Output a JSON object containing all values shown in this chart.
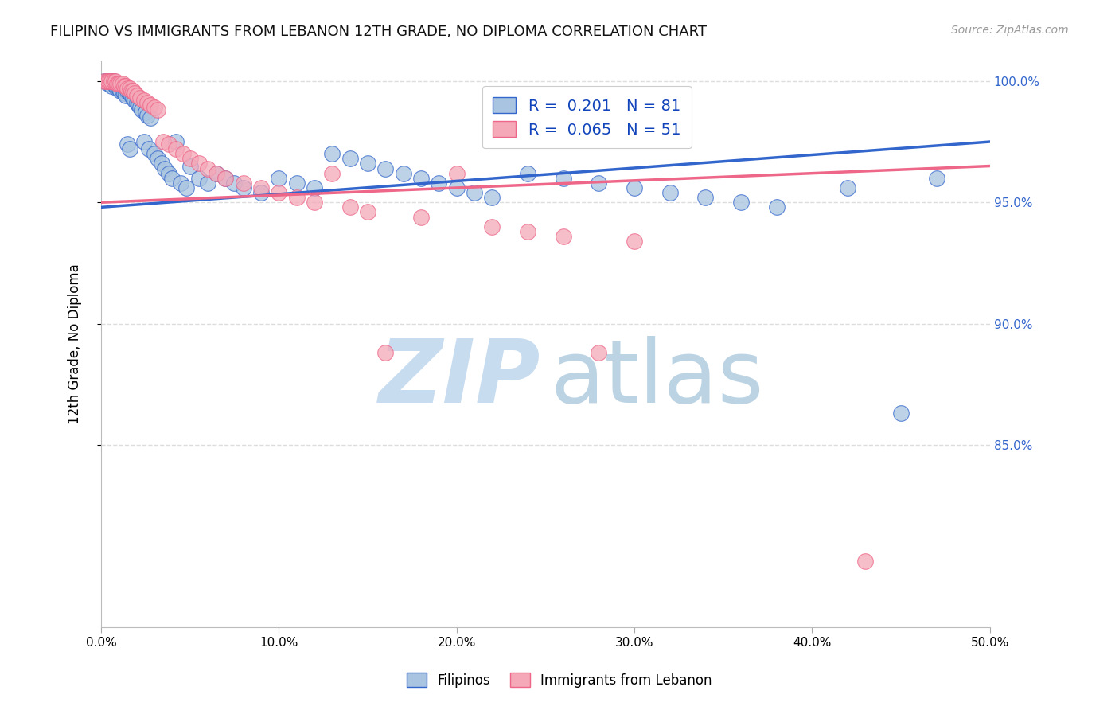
{
  "title": "FILIPINO VS IMMIGRANTS FROM LEBANON 12TH GRADE, NO DIPLOMA CORRELATION CHART",
  "source": "Source: ZipAtlas.com",
  "ylabel_label": "12th Grade, No Diploma",
  "xlim": [
    0.0,
    0.5
  ],
  "ylim": [
    0.775,
    1.008
  ],
  "yticks": [
    1.0,
    0.95,
    0.9,
    0.85
  ],
  "xticks": [
    0.0,
    0.1,
    0.2,
    0.3,
    0.4,
    0.5
  ],
  "blue_R": "0.201",
  "blue_N": "81",
  "pink_R": "0.065",
  "pink_N": "51",
  "blue_color": "#A8C4E0",
  "pink_color": "#F4A8B8",
  "blue_line_color": "#3366CC",
  "pink_line_color": "#EE6688",
  "legend_text_color": "#1144BB",
  "title_color": "#111111",
  "grid_color": "#DDDDDD",
  "blue_x": [
    0.002,
    0.003,
    0.004,
    0.004,
    0.005,
    0.005,
    0.006,
    0.006,
    0.007,
    0.007,
    0.008,
    0.008,
    0.009,
    0.009,
    0.01,
    0.01,
    0.011,
    0.011,
    0.012,
    0.012,
    0.013,
    0.013,
    0.014,
    0.014,
    0.015,
    0.015,
    0.016,
    0.016,
    0.017,
    0.018,
    0.019,
    0.02,
    0.021,
    0.022,
    0.023,
    0.024,
    0.025,
    0.026,
    0.027,
    0.028,
    0.03,
    0.032,
    0.034,
    0.036,
    0.038,
    0.04,
    0.042,
    0.045,
    0.048,
    0.05,
    0.055,
    0.06,
    0.065,
    0.07,
    0.075,
    0.08,
    0.09,
    0.1,
    0.11,
    0.12,
    0.13,
    0.14,
    0.15,
    0.16,
    0.17,
    0.18,
    0.19,
    0.2,
    0.21,
    0.22,
    0.24,
    0.26,
    0.28,
    0.3,
    0.32,
    0.34,
    0.36,
    0.38,
    0.42,
    0.45,
    0.47
  ],
  "blue_y": [
    1.0,
    1.0,
    1.0,
    0.999,
    1.0,
    0.999,
    1.0,
    0.998,
    1.0,
    0.999,
    0.999,
    0.998,
    0.999,
    0.997,
    0.998,
    0.997,
    0.998,
    0.996,
    0.997,
    0.996,
    0.997,
    0.995,
    0.996,
    0.994,
    0.996,
    0.974,
    0.995,
    0.972,
    0.994,
    0.993,
    0.992,
    0.991,
    0.99,
    0.989,
    0.988,
    0.975,
    0.987,
    0.986,
    0.972,
    0.985,
    0.97,
    0.968,
    0.966,
    0.964,
    0.962,
    0.96,
    0.975,
    0.958,
    0.956,
    0.965,
    0.96,
    0.958,
    0.962,
    0.96,
    0.958,
    0.956,
    0.954,
    0.96,
    0.958,
    0.956,
    0.97,
    0.968,
    0.966,
    0.964,
    0.962,
    0.96,
    0.958,
    0.956,
    0.954,
    0.952,
    0.962,
    0.96,
    0.958,
    0.956,
    0.954,
    0.952,
    0.95,
    0.948,
    0.956,
    0.863,
    0.96
  ],
  "pink_x": [
    0.002,
    0.003,
    0.004,
    0.005,
    0.006,
    0.007,
    0.008,
    0.009,
    0.01,
    0.011,
    0.012,
    0.013,
    0.014,
    0.015,
    0.016,
    0.017,
    0.018,
    0.019,
    0.02,
    0.022,
    0.024,
    0.026,
    0.028,
    0.03,
    0.032,
    0.035,
    0.038,
    0.042,
    0.046,
    0.05,
    0.055,
    0.06,
    0.065,
    0.07,
    0.08,
    0.09,
    0.1,
    0.11,
    0.12,
    0.13,
    0.14,
    0.15,
    0.16,
    0.18,
    0.2,
    0.22,
    0.24,
    0.26,
    0.28,
    0.3,
    0.43
  ],
  "pink_y": [
    1.0,
    1.0,
    1.0,
    1.0,
    1.0,
    1.0,
    1.0,
    0.999,
    0.999,
    0.999,
    0.999,
    0.998,
    0.998,
    0.997,
    0.997,
    0.996,
    0.996,
    0.995,
    0.994,
    0.993,
    0.992,
    0.991,
    0.99,
    0.989,
    0.988,
    0.975,
    0.974,
    0.972,
    0.97,
    0.968,
    0.966,
    0.964,
    0.962,
    0.96,
    0.958,
    0.956,
    0.954,
    0.952,
    0.95,
    0.962,
    0.948,
    0.946,
    0.888,
    0.944,
    0.962,
    0.94,
    0.938,
    0.936,
    0.888,
    0.934,
    0.802
  ]
}
